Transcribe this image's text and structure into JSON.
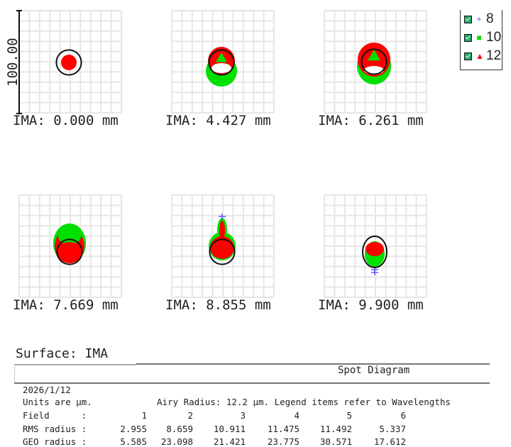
{
  "chart_data": {
    "type": "scatter",
    "title": "Spot Diagram",
    "surface": "Surface: IMA",
    "scale_bar_label": "100.00",
    "panels": [
      {
        "field": 1,
        "label": "IMA: 0.000 mm"
      },
      {
        "field": 2,
        "label": "IMA: 4.427 mm"
      },
      {
        "field": 3,
        "label": "IMA: 6.261 mm"
      },
      {
        "field": 4,
        "label": "IMA: 7.669 mm"
      },
      {
        "field": 5,
        "label": "IMA: 8.855 mm"
      },
      {
        "field": 6,
        "label": "IMA: 9.900 mm"
      }
    ],
    "legend": [
      {
        "label": "8",
        "marker": "+",
        "color": "#5a5aff"
      },
      {
        "label": "10",
        "marker": "■",
        "color": "#00e000"
      },
      {
        "label": "12",
        "marker": "▲",
        "color": "#ff0000"
      }
    ],
    "grid": true,
    "airy_circle_color": "#111111",
    "info": {
      "date": "2026/1/12",
      "units": "Units are µm.",
      "airy": "Airy Radius: 12.2 µm. Legend items refer to Wavelengths",
      "airy_radius_um": 12.2,
      "rows": [
        {
          "label": "Field      :",
          "values": [
            "1",
            "2",
            "3",
            "4",
            "5",
            "6"
          ]
        },
        {
          "label": "RMS radius :",
          "values": [
            "2.955",
            "8.659",
            "10.911",
            "11.475",
            "11.492",
            "5.337"
          ]
        },
        {
          "label": "GEO radius :",
          "values": [
            "5.585",
            "23.098",
            "21.421",
            "23.775",
            "30.571",
            "17.612"
          ]
        }
      ]
    }
  }
}
